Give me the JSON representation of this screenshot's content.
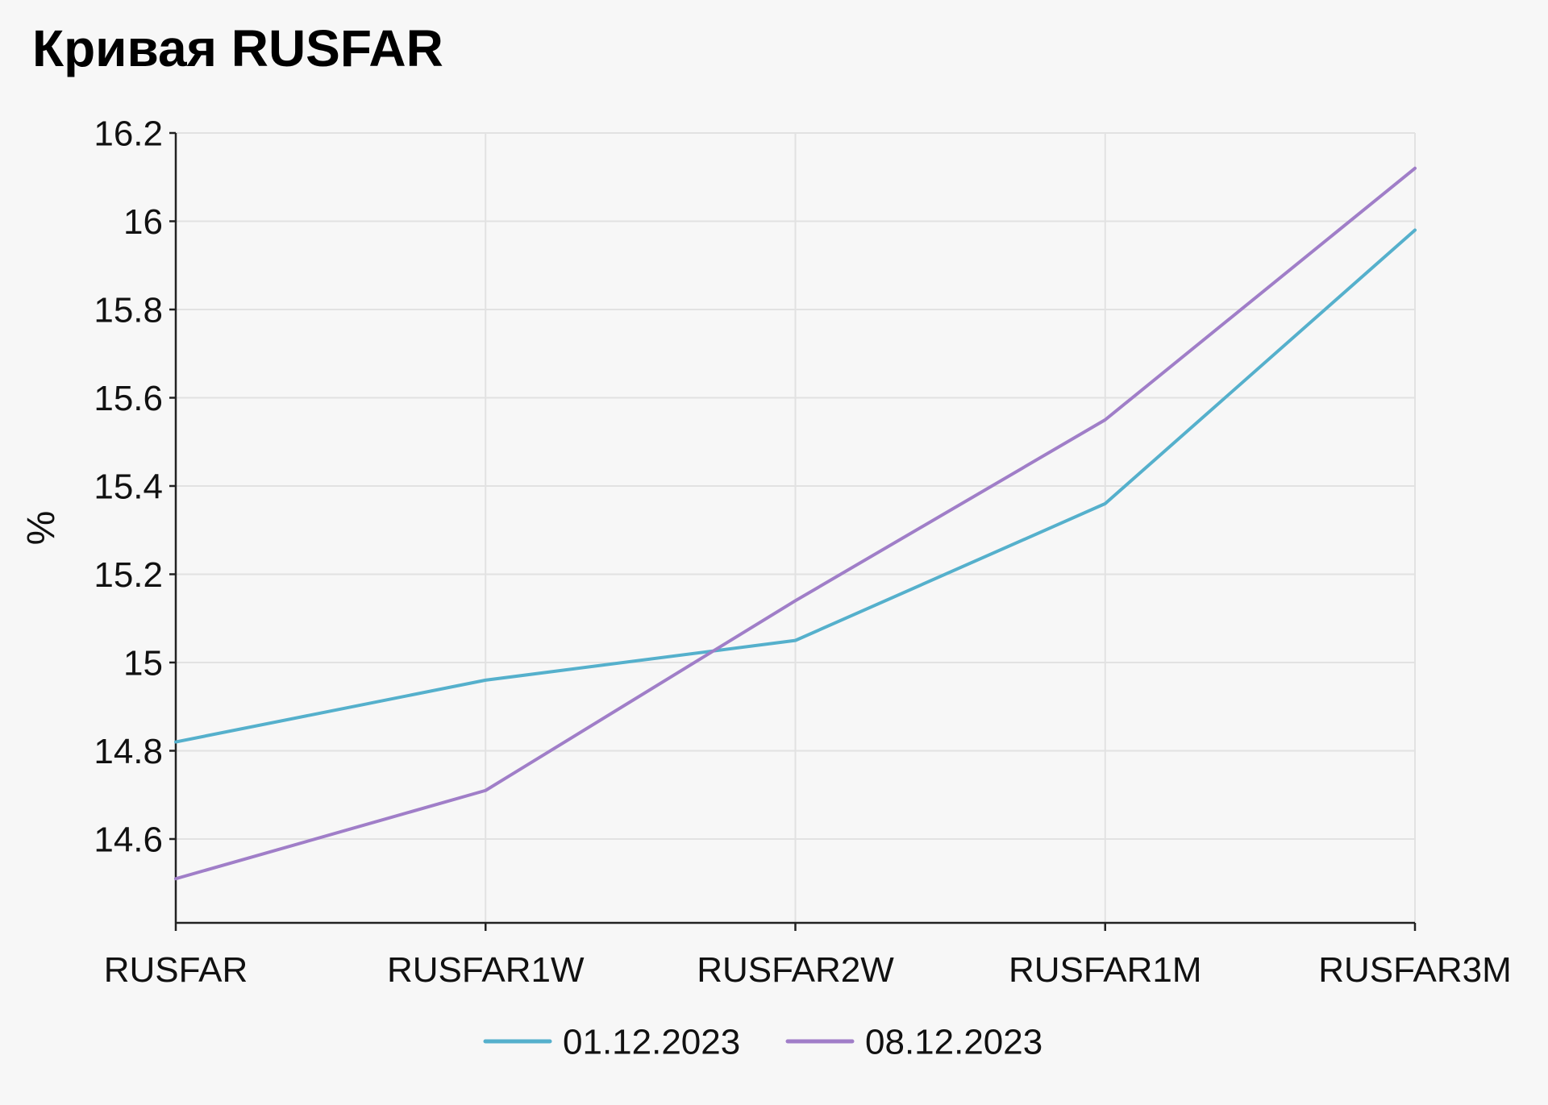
{
  "chart_data": {
    "type": "line",
    "title": "Кривая RUSFAR",
    "xlabel": "",
    "ylabel": "%",
    "categories": [
      "RUSFAR",
      "RUSFAR1W",
      "RUSFAR2W",
      "RUSFAR1M",
      "RUSFAR3M"
    ],
    "ylim": [
      14.41,
      16.2
    ],
    "yticks": [
      14.6,
      14.8,
      15,
      15.2,
      15.4,
      15.6,
      15.8,
      16,
      16.2
    ],
    "ytick_labels": [
      "14.6",
      "14.8",
      "15",
      "15.2",
      "15.4",
      "15.6",
      "15.8",
      "16",
      "16.2"
    ],
    "grid": true,
    "legend_position": "bottom",
    "series": [
      {
        "name": "01.12.2023",
        "color": "#55b0cc",
        "values": [
          14.82,
          14.96,
          15.05,
          15.36,
          15.98
        ]
      },
      {
        "name": "08.12.2023",
        "color": "#a07ec8",
        "values": [
          14.51,
          14.71,
          15.14,
          15.55,
          16.12
        ]
      }
    ]
  }
}
